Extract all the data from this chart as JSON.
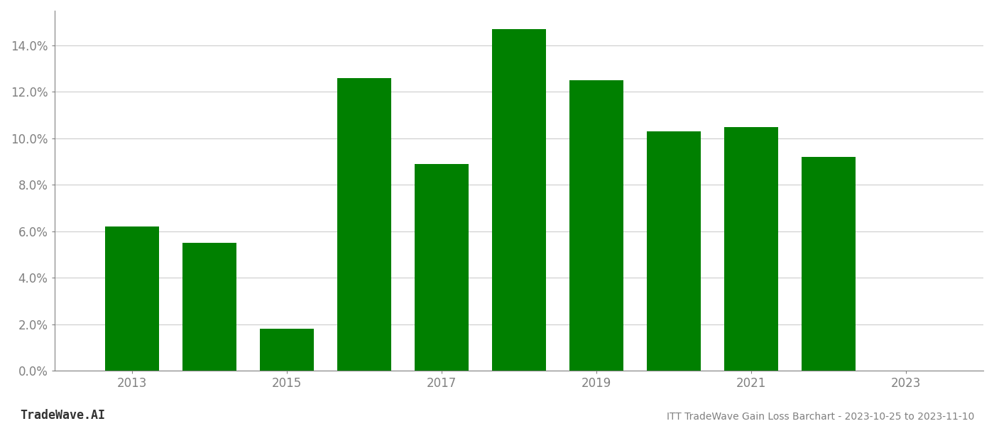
{
  "years": [
    2013,
    2014,
    2015,
    2016,
    2017,
    2018,
    2019,
    2020,
    2021,
    2022
  ],
  "values": [
    0.062,
    0.055,
    0.018,
    0.126,
    0.089,
    0.147,
    0.125,
    0.103,
    0.105,
    0.092
  ],
  "bar_color": "#008000",
  "background_color": "#ffffff",
  "title": "ITT TradeWave Gain Loss Barchart - 2023-10-25 to 2023-11-10",
  "watermark": "TradeWave.AI",
  "ylim": [
    0,
    0.155
  ],
  "yticks": [
    0.0,
    0.02,
    0.04,
    0.06,
    0.08,
    0.1,
    0.12,
    0.14
  ],
  "xticks": [
    2013,
    2015,
    2017,
    2019,
    2021,
    2023
  ],
  "grid_color": "#cccccc",
  "title_color": "#808080",
  "tick_color": "#808080",
  "watermark_color": "#333333",
  "bar_width": 0.7
}
